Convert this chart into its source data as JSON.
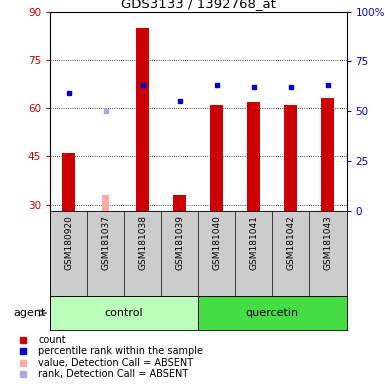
{
  "title": "GDS3133 / 1392768_at",
  "samples": [
    "GSM180920",
    "GSM181037",
    "GSM181038",
    "GSM181039",
    "GSM181040",
    "GSM181041",
    "GSM181042",
    "GSM181043"
  ],
  "count_values": [
    46,
    null,
    85,
    33,
    61,
    62,
    61,
    63
  ],
  "count_absent": [
    null,
    33,
    null,
    null,
    null,
    null,
    null,
    null
  ],
  "rank_values": [
    59,
    null,
    63,
    55,
    63,
    62,
    62,
    63
  ],
  "rank_absent": [
    null,
    50,
    null,
    null,
    null,
    null,
    null,
    null
  ],
  "ylim_left": [
    28,
    90
  ],
  "ylim_right": [
    0,
    100
  ],
  "yticks_left": [
    30,
    45,
    60,
    75,
    90
  ],
  "yticks_right": [
    0,
    25,
    50,
    75,
    100
  ],
  "ytick_labels_right": [
    "0",
    "25",
    "50",
    "75",
    "100%"
  ],
  "bar_width": 0.35,
  "bar_color_present": "#cc0000",
  "bar_color_absent": "#ffaaaa",
  "dot_color_present": "#0000cc",
  "dot_color_absent": "#aaaadd",
  "control_color_light": "#bbffbb",
  "control_color": "#bbffbb",
  "quercetin_color": "#44dd44",
  "left_ylabel_color": "#cc0000",
  "right_ylabel_color": "#0000cc",
  "background_color": "#ffffff",
  "sample_bg_color": "#cccccc",
  "legend_items": [
    {
      "color": "#cc0000",
      "label": "count"
    },
    {
      "color": "#0000cc",
      "label": "percentile rank within the sample"
    },
    {
      "color": "#ffaaaa",
      "label": "value, Detection Call = ABSENT"
    },
    {
      "color": "#aaaadd",
      "label": "rank, Detection Call = ABSENT"
    }
  ]
}
